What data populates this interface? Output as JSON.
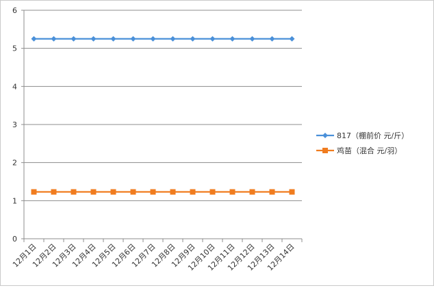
{
  "chart_data": {
    "type": "line",
    "categories": [
      "12月1日",
      "12月2日",
      "12月3日",
      "12月4日",
      "12月5日",
      "12月6日",
      "12月7日",
      "12月8日",
      "12月9日",
      "12月10日",
      "12月11日",
      "12月12日",
      "12月13日",
      "12月14日"
    ],
    "ylim": [
      0,
      6
    ],
    "yticks": [
      0,
      1,
      2,
      3,
      4,
      5,
      6
    ],
    "grid": true,
    "legend_position": "right",
    "series": [
      {
        "name": "817（棚前价 元/斤）",
        "color": "#4a90d9",
        "marker": "diamond",
        "values": [
          5.25,
          5.25,
          5.25,
          5.25,
          5.25,
          5.25,
          5.25,
          5.25,
          5.25,
          5.25,
          5.25,
          5.25,
          5.25,
          5.25
        ]
      },
      {
        "name": "鸡苗（混合 元/羽）",
        "color": "#f07c1f",
        "marker": "square",
        "values": [
          1.23,
          1.23,
          1.23,
          1.23,
          1.23,
          1.23,
          1.23,
          1.23,
          1.23,
          1.23,
          1.23,
          1.23,
          1.23,
          1.23
        ]
      }
    ]
  }
}
